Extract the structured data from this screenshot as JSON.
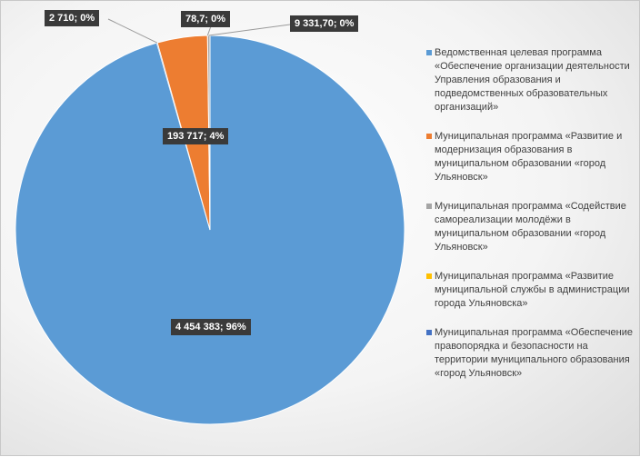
{
  "chart_data": {
    "type": "pie",
    "title": "",
    "slices": [
      {
        "name": "Ведомственная целевая программа «Обеспечение организации деятельности Управления образования и подведомственных образовательных организаций»",
        "value": 4454383,
        "label": "4 454 383; 96%",
        "color": "#5b9bd5"
      },
      {
        "name": "Муниципальная программа «Развитие и модернизация образования в муниципальном образовании «город Ульяновск»",
        "value": 193717,
        "label": "193 717; 4%",
        "color": "#ed7d31"
      },
      {
        "name": "Муниципальная программа «Содействие самореализации молодёжи в муниципальном образовании «город Ульяновск»",
        "value": 9331.7,
        "label": "9 331,70; 0%",
        "color": "#a5a5a5"
      },
      {
        "name": "Муниципальная программа «Развитие муниципальной службы в администрации города Ульяновска»",
        "value": 78.7,
        "label": "78,7; 0%",
        "color": "#ffc000"
      },
      {
        "name": "Муниципальная программа «Обеспечение правопорядка и безопасности на территории муниципального образования «город Ульяновск»",
        "value": 2710,
        "label": "2 710; 0%",
        "color": "#4472c4"
      }
    ],
    "legend_position": "right"
  }
}
